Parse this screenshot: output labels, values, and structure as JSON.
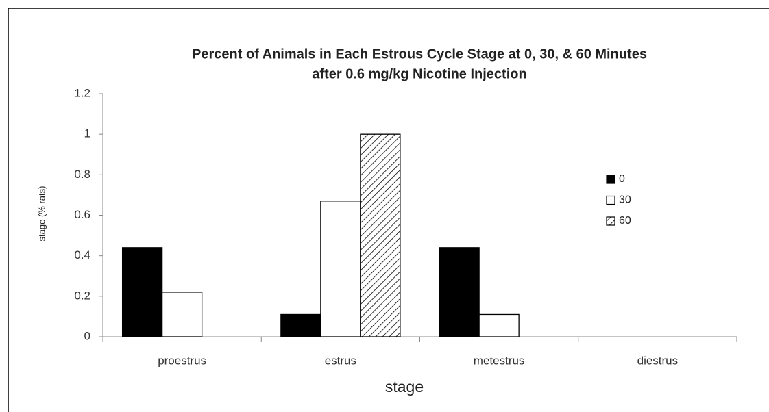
{
  "chart_data": {
    "type": "bar",
    "title": [
      "Percent of Animals in Each Estrous Cycle Stage at 0, 30, & 60 Minutes",
      "after 0.6 mg/kg Nicotine Injection"
    ],
    "x_label": "stage",
    "y_label": "stage (% rats)",
    "categories": [
      "proestrus",
      "estrus",
      "metestrus",
      "diestrus"
    ],
    "series": [
      {
        "name": "0",
        "color": "#000000",
        "values": [
          0.44,
          0.11,
          0.44,
          0
        ]
      },
      {
        "name": "30",
        "color": "#ffffff",
        "values": [
          0.22,
          0.67,
          0.11,
          0
        ]
      },
      {
        "name": "60",
        "color": "#ffffff",
        "hatch": true,
        "values": [
          0,
          1,
          0,
          0
        ]
      }
    ],
    "ylim": [
      0,
      1.2
    ],
    "yticks": [
      0,
      0.2,
      0.4,
      0.6,
      0.8,
      1,
      1.2
    ],
    "grid": false,
    "legend": "right"
  }
}
